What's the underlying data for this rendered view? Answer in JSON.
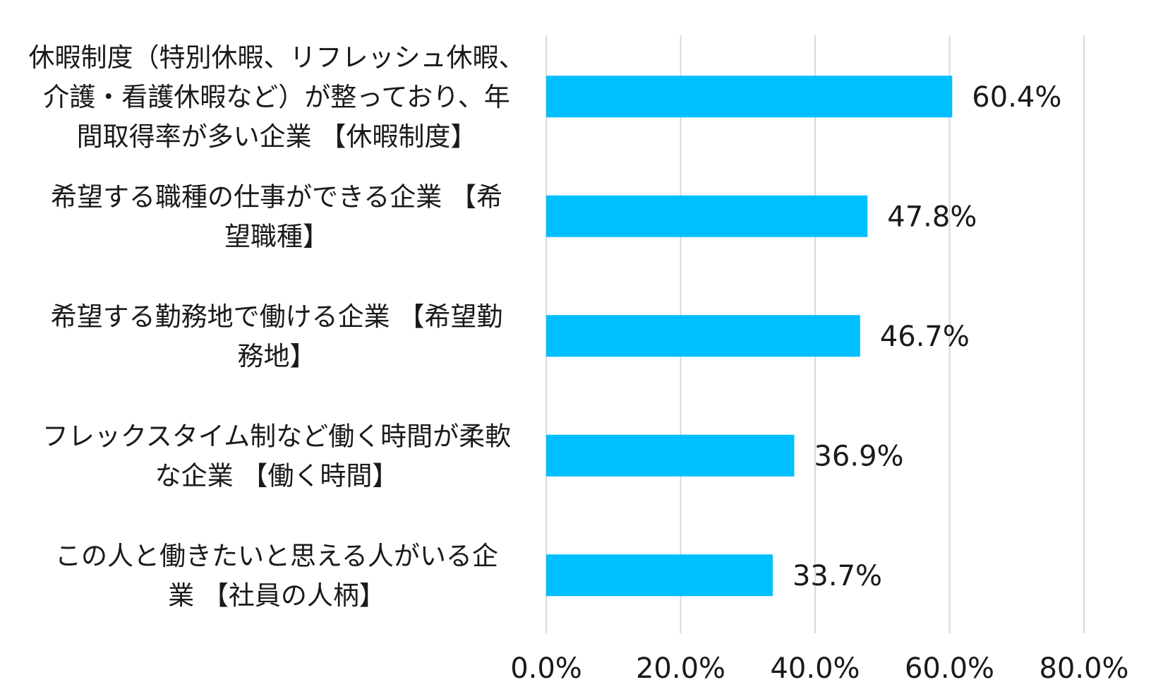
{
  "chart_data": {
    "type": "bar",
    "orientation": "horizontal",
    "categories": [
      [
        "休暇制度（特別休暇、リフレッシュ休暇、",
        "介護・看護休暇など）が整っており、年",
        "間取得率が多い企業 【休暇制度】"
      ],
      [
        "希望する職種の仕事ができる企業 【希",
        "望職種】"
      ],
      [
        "希望する勤務地で働ける企業 【希望勤",
        "務地】"
      ],
      [
        "フレックスタイム制など働く時間が柔軟",
        "な企業 【働く時間】"
      ],
      [
        "この人と働きたいと思える人がいる企",
        "業 【社員の人柄】"
      ]
    ],
    "values": [
      60.4,
      47.8,
      46.7,
      36.9,
      33.7
    ],
    "value_labels": [
      "60.4%",
      "47.8%",
      "46.7%",
      "36.9%",
      "33.7%"
    ],
    "xlim": [
      0,
      80
    ],
    "x_ticks": [
      0,
      20,
      40,
      60,
      80
    ],
    "x_tick_labels": [
      "0.0%",
      "20.0%",
      "40.0%",
      "60.0%",
      "80.0%"
    ],
    "grid": true,
    "bar_color": "#00BFFF",
    "grid_color": "#D9D9D9"
  }
}
